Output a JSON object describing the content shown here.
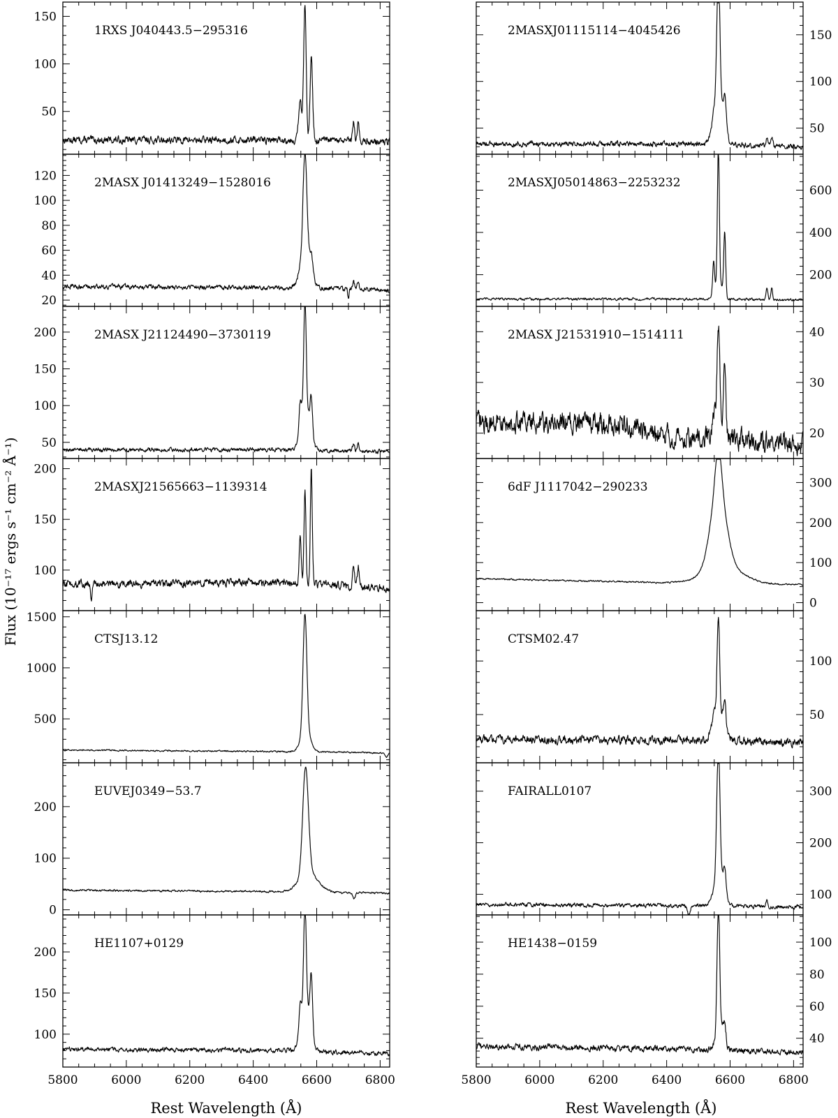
{
  "figure": {
    "ylabel": "Flux (10⁻¹⁷ ergs s⁻¹ cm⁻² Å⁻¹)",
    "xlabel": "Rest Wavelength (Å)",
    "xticks": [
      "5800",
      "6000",
      "6200",
      "6400",
      "6600",
      "6800"
    ]
  },
  "chart_data": [
    {
      "type": "line",
      "title": "1RXS J040443.5−295316",
      "column": "left",
      "row": 0,
      "xlim": [
        5800,
        6830
      ],
      "ylim": [
        5,
        165
      ],
      "yticks": [
        50,
        100,
        150
      ],
      "continuum": [
        [
          5800,
          20
        ],
        [
          6520,
          20
        ],
        [
          6830,
          18
        ]
      ],
      "lines": [
        {
          "x": 6548,
          "amp": 40,
          "w": 5
        },
        {
          "x": 6563,
          "amp": 142,
          "w": 4
        },
        {
          "x": 6583,
          "amp": 87,
          "w": 4
        },
        {
          "x": 6716,
          "amp": 20,
          "w": 3
        },
        {
          "x": 6731,
          "amp": 20,
          "w": 3
        }
      ],
      "absorptions": [],
      "noise": 4
    },
    {
      "type": "line",
      "title": "2MASXJ01115114−4045426",
      "column": "right",
      "row": 0,
      "xlim": [
        5800,
        6830
      ],
      "ylim": [
        22,
        185
      ],
      "yticks": [
        50,
        100,
        150
      ],
      "continuum": [
        [
          5800,
          33
        ],
        [
          6520,
          33
        ],
        [
          6830,
          30
        ]
      ],
      "lines": [
        {
          "x": 6563,
          "amp": 145,
          "w": 5
        },
        {
          "x": 6563,
          "amp": 40,
          "w": 16
        },
        {
          "x": 6583,
          "amp": 35,
          "w": 5
        },
        {
          "x": 6548,
          "amp": 12,
          "w": 4
        },
        {
          "x": 6716,
          "amp": 8,
          "w": 3
        },
        {
          "x": 6731,
          "amp": 8,
          "w": 3
        }
      ],
      "absorptions": [],
      "noise": 3
    },
    {
      "type": "line",
      "title": "2MASX J01413249−1528016",
      "column": "left",
      "row": 1,
      "xlim": [
        5800,
        6830
      ],
      "ylim": [
        15,
        137
      ],
      "yticks": [
        20,
        40,
        60,
        80,
        100,
        120
      ],
      "continuum": [
        [
          5800,
          31
        ],
        [
          6520,
          30
        ],
        [
          6830,
          28
        ]
      ],
      "lines": [
        {
          "x": 6563,
          "amp": 80,
          "w": 6
        },
        {
          "x": 6565,
          "amp": 30,
          "w": 16
        },
        {
          "x": 6583,
          "amp": 12,
          "w": 5
        },
        {
          "x": 6716,
          "amp": 6,
          "w": 3
        },
        {
          "x": 6731,
          "amp": 6,
          "w": 3
        }
      ],
      "absorptions": [
        {
          "x": 6700,
          "amp": 8,
          "w": 2
        }
      ],
      "noise": 2
    },
    {
      "type": "line",
      "title": "2MASXJ05014863−2253232",
      "column": "right",
      "row": 1,
      "xlim": [
        5800,
        6830
      ],
      "ylim": [
        50,
        770
      ],
      "yticks": [
        200,
        400,
        600
      ],
      "continuum": [
        [
          5800,
          85
        ],
        [
          6520,
          85
        ],
        [
          6830,
          80
        ]
      ],
      "lines": [
        {
          "x": 6563,
          "amp": 650,
          "w": 3
        },
        {
          "x": 6583,
          "amp": 300,
          "w": 3
        },
        {
          "x": 6548,
          "amp": 150,
          "w": 3
        },
        {
          "x": 6565,
          "amp": 80,
          "w": 12
        },
        {
          "x": 6716,
          "amp": 60,
          "w": 3
        },
        {
          "x": 6731,
          "amp": 55,
          "w": 3
        }
      ],
      "absorptions": [],
      "noise": 6
    },
    {
      "type": "line",
      "title": "2MASX J21124490−3730119",
      "column": "left",
      "row": 2,
      "xlim": [
        5800,
        6830
      ],
      "ylim": [
        28,
        235
      ],
      "yticks": [
        50,
        100,
        150,
        200
      ],
      "continuum": [
        [
          5800,
          40
        ],
        [
          6520,
          40
        ],
        [
          6830,
          37
        ]
      ],
      "lines": [
        {
          "x": 6563,
          "amp": 150,
          "w": 4
        },
        {
          "x": 6565,
          "amp": 55,
          "w": 14
        },
        {
          "x": 6583,
          "amp": 50,
          "w": 4
        },
        {
          "x": 6548,
          "amp": 40,
          "w": 4
        },
        {
          "x": 6716,
          "amp": 10,
          "w": 3
        },
        {
          "x": 6731,
          "amp": 10,
          "w": 3
        }
      ],
      "absorptions": [],
      "noise": 3
    },
    {
      "type": "line",
      "title": "2MASX J21531910−1514111",
      "column": "right",
      "row": 2,
      "xlim": [
        5800,
        6830
      ],
      "ylim": [
        15,
        45
      ],
      "yticks": [
        20,
        30,
        40
      ],
      "continuum": [
        [
          5800,
          22
        ],
        [
          6200,
          22
        ],
        [
          6450,
          19
        ],
        [
          6520,
          19
        ],
        [
          6830,
          18
        ]
      ],
      "lines": [
        {
          "x": 6563,
          "amp": 22,
          "w": 5
        },
        {
          "x": 6583,
          "amp": 15,
          "w": 4
        },
        {
          "x": 6548,
          "amp": 6,
          "w": 4
        }
      ],
      "absorptions": [],
      "noise": 2.2
    },
    {
      "type": "line",
      "title": "2MASXJ21565663−1139314",
      "column": "left",
      "row": 3,
      "xlim": [
        5800,
        6830
      ],
      "ylim": [
        60,
        210
      ],
      "yticks": [
        100,
        150,
        200
      ],
      "continuum": [
        [
          5800,
          86
        ],
        [
          6520,
          88
        ],
        [
          6830,
          82
        ]
      ],
      "lines": [
        {
          "x": 6563,
          "amp": 90,
          "w": 3
        },
        {
          "x": 6583,
          "amp": 115,
          "w": 3
        },
        {
          "x": 6548,
          "amp": 50,
          "w": 3
        },
        {
          "x": 6716,
          "amp": 18,
          "w": 3
        },
        {
          "x": 6731,
          "amp": 20,
          "w": 3
        }
      ],
      "absorptions": [
        {
          "x": 5890,
          "amp": 15,
          "w": 3
        },
        {
          "x": 6870,
          "amp": 0,
          "w": 1
        }
      ],
      "noise": 4
    },
    {
      "type": "line",
      "title": "6dF J1117042−290233",
      "column": "right",
      "row": 3,
      "xlim": [
        5800,
        6830
      ],
      "ylim": [
        -20,
        360
      ],
      "yticks": [
        0,
        100,
        200,
        300
      ],
      "continuum": [
        [
          5800,
          60
        ],
        [
          6400,
          50
        ],
        [
          6830,
          45
        ]
      ],
      "lines": [
        {
          "x": 6563,
          "amp": 190,
          "w": 25
        },
        {
          "x": 6563,
          "amp": 110,
          "w": 10
        },
        {
          "x": 6580,
          "amp": 40,
          "w": 60
        }
      ],
      "absorptions": [],
      "noise": 2
    },
    {
      "type": "line",
      "title": "CTSJ13.12",
      "column": "left",
      "row": 4,
      "xlim": [
        5800,
        6830
      ],
      "ylim": [
        70,
        1560
      ],
      "yticks": [
        500,
        1000,
        1500
      ],
      "continuum": [
        [
          5800,
          195
        ],
        [
          6520,
          180
        ],
        [
          6830,
          165
        ]
      ],
      "lines": [
        {
          "x": 6563,
          "amp": 1150,
          "w": 6
        },
        {
          "x": 6565,
          "amp": 200,
          "w": 15
        }
      ],
      "absorptions": [
        {
          "x": 6820,
          "amp": 40,
          "w": 4
        }
      ],
      "noise": 8
    },
    {
      "type": "line",
      "title": "CTSM02.47",
      "column": "right",
      "row": 4,
      "xlim": [
        5800,
        6830
      ],
      "ylim": [
        5,
        147
      ],
      "yticks": [
        50,
        100
      ],
      "continuum": [
        [
          5800,
          27
        ],
        [
          6520,
          26
        ],
        [
          6830,
          24
        ]
      ],
      "lines": [
        {
          "x": 6563,
          "amp": 90,
          "w": 4
        },
        {
          "x": 6565,
          "amp": 25,
          "w": 18
        },
        {
          "x": 6583,
          "amp": 20,
          "w": 4
        },
        {
          "x": 6548,
          "amp": 10,
          "w": 4
        }
      ],
      "absorptions": [],
      "noise": 4
    },
    {
      "type": "line",
      "title": "EUVEJ0349−53.7",
      "column": "left",
      "row": 5,
      "xlim": [
        5800,
        6830
      ],
      "ylim": [
        -10,
        285
      ],
      "yticks": [
        0,
        100,
        200
      ],
      "continuum": [
        [
          5800,
          38
        ],
        [
          6520,
          35
        ],
        [
          6830,
          32
        ]
      ],
      "lines": [
        {
          "x": 6565,
          "amp": 210,
          "w": 9
        },
        {
          "x": 6575,
          "amp": 35,
          "w": 30
        }
      ],
      "absorptions": [
        {
          "x": 6718,
          "amp": 12,
          "w": 4
        }
      ],
      "noise": 2
    },
    {
      "type": "line",
      "title": "FAIRALL0107",
      "column": "right",
      "row": 5,
      "xlim": [
        5800,
        6830
      ],
      "ylim": [
        60,
        355
      ],
      "yticks": [
        100,
        200,
        300
      ],
      "continuum": [
        [
          5800,
          80
        ],
        [
          6520,
          78
        ],
        [
          6830,
          75
        ]
      ],
      "lines": [
        {
          "x": 6563,
          "amp": 250,
          "w": 5
        },
        {
          "x": 6565,
          "amp": 60,
          "w": 15
        },
        {
          "x": 6583,
          "amp": 50,
          "w": 4
        },
        {
          "x": 6716,
          "amp": 12,
          "w": 3
        }
      ],
      "absorptions": [
        {
          "x": 6470,
          "amp": 20,
          "w": 4
        }
      ],
      "noise": 4
    },
    {
      "type": "line",
      "title": "HE1107+0129",
      "column": "left",
      "row": 6,
      "xlim": [
        5800,
        6830
      ],
      "ylim": [
        60,
        245
      ],
      "yticks": [
        100,
        150,
        200
      ],
      "continuum": [
        [
          5800,
          82
        ],
        [
          6520,
          80
        ],
        [
          6830,
          76
        ]
      ],
      "lines": [
        {
          "x": 6563,
          "amp": 120,
          "w": 4
        },
        {
          "x": 6565,
          "amp": 60,
          "w": 14
        },
        {
          "x": 6583,
          "amp": 70,
          "w": 4
        },
        {
          "x": 6548,
          "amp": 30,
          "w": 4
        }
      ],
      "absorptions": [],
      "noise": 3
    },
    {
      "type": "line",
      "title": "HE1438−0159",
      "column": "right",
      "row": 6,
      "xlim": [
        5800,
        6830
      ],
      "ylim": [
        22,
        117
      ],
      "yticks": [
        40,
        60,
        80,
        100
      ],
      "continuum": [
        [
          5800,
          35
        ],
        [
          6520,
          33
        ],
        [
          6830,
          31
        ]
      ],
      "lines": [
        {
          "x": 6563,
          "amp": 78,
          "w": 4
        },
        {
          "x": 6567,
          "amp": 15,
          "w": 12
        },
        {
          "x": 6583,
          "amp": 12,
          "w": 4
        }
      ],
      "absorptions": [],
      "noise": 2
    }
  ]
}
